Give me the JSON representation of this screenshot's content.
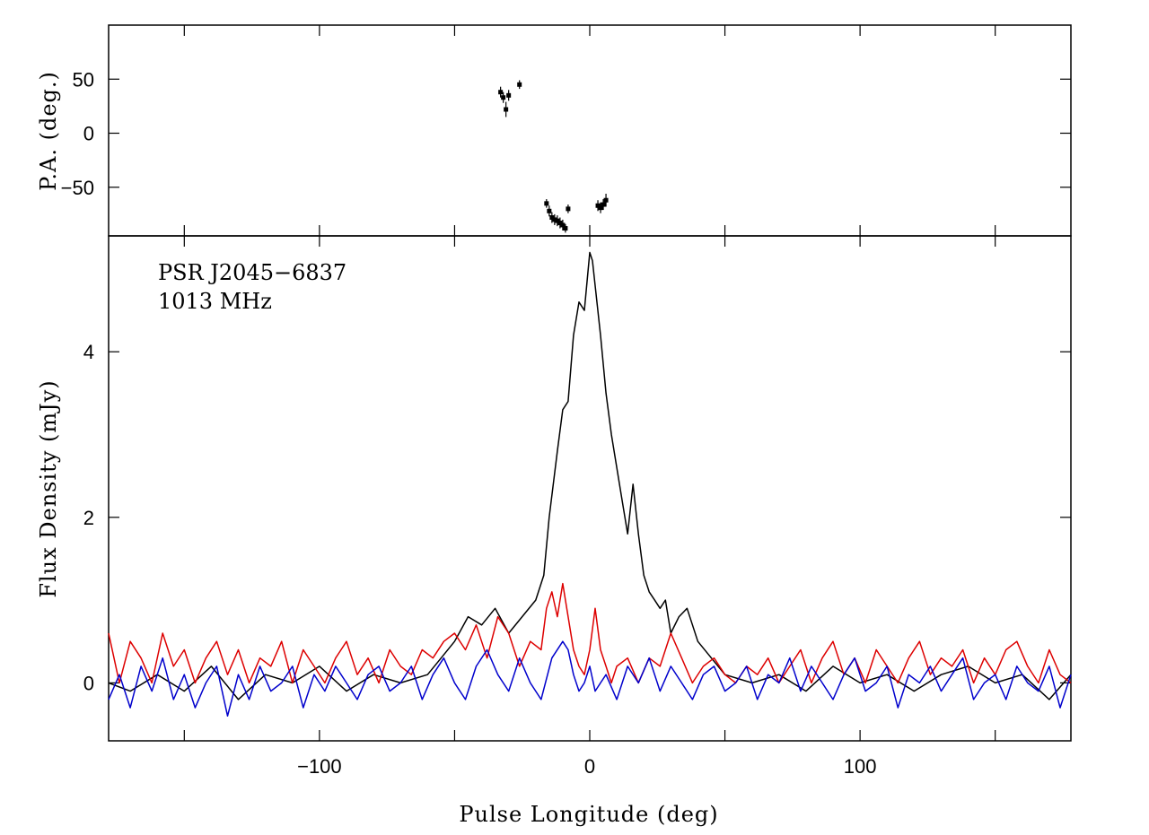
{
  "chart_data": [
    {
      "panel": "top",
      "type": "scatter",
      "ylabel": "P.A. (deg.)",
      "xlim": [
        -178,
        178
      ],
      "ylim": [
        -95,
        100
      ],
      "yticks": [
        -50,
        0,
        50
      ],
      "x": [
        -33,
        -32,
        -31,
        -30,
        -26,
        -16,
        -15,
        -14,
        -13,
        -12,
        -11,
        -10,
        -9,
        -8,
        3,
        4,
        5,
        6
      ],
      "y": [
        38,
        33,
        22,
        35,
        45,
        -65,
        -72,
        -78,
        -80,
        -81,
        -83,
        -85,
        -88,
        -70,
        -67,
        -69,
        -66,
        -62
      ],
      "err": [
        5,
        5,
        7,
        5,
        4,
        4,
        5,
        5,
        5,
        5,
        5,
        5,
        4,
        4,
        5,
        5,
        5,
        6
      ],
      "color": "#000000"
    },
    {
      "panel": "bottom",
      "type": "line",
      "xlabel": "Pulse Longitude (deg)",
      "ylabel": "Flux Density (mJy)",
      "xlim": [
        -178,
        178
      ],
      "ylim": [
        -0.7,
        5.4
      ],
      "xticks": [
        -100,
        0,
        100
      ],
      "yticks": [
        0,
        2,
        4
      ],
      "annotations": [
        "PSR J2045−6837",
        "1013 MHz"
      ],
      "series": [
        {
          "color": "#000000",
          "x": [
            -178,
            -170,
            -160,
            -150,
            -140,
            -130,
            -120,
            -110,
            -100,
            -90,
            -80,
            -70,
            -60,
            -55,
            -50,
            -45,
            -40,
            -35,
            -30,
            -25,
            -20,
            -17,
            -15,
            -12,
            -10,
            -8,
            -6,
            -4,
            -2,
            0,
            1,
            2,
            4,
            6,
            8,
            10,
            12,
            14,
            16,
            18,
            20,
            22,
            24,
            26,
            28,
            30,
            33,
            36,
            40,
            45,
            50,
            60,
            70,
            80,
            90,
            100,
            110,
            120,
            130,
            140,
            150,
            160,
            170,
            178
          ],
          "y": [
            0,
            -0.1,
            0.1,
            -0.1,
            0.2,
            -0.2,
            0.1,
            0,
            0.2,
            -0.1,
            0.1,
            0,
            0.1,
            0.3,
            0.5,
            0.8,
            0.7,
            0.9,
            0.6,
            0.8,
            1.0,
            1.3,
            2.0,
            2.8,
            3.3,
            3.4,
            4.2,
            4.6,
            4.5,
            5.2,
            5.1,
            4.8,
            4.2,
            3.5,
            3.0,
            2.6,
            2.2,
            1.8,
            2.4,
            1.8,
            1.3,
            1.1,
            1.0,
            0.9,
            1.0,
            0.6,
            0.8,
            0.9,
            0.5,
            0.3,
            0.1,
            0,
            0.1,
            -0.1,
            0.2,
            0,
            0.1,
            -0.1,
            0.1,
            0.2,
            0,
            0.1,
            -0.2,
            0.1
          ]
        },
        {
          "color": "#dd0000",
          "x": [
            -178,
            -174,
            -170,
            -166,
            -162,
            -158,
            -154,
            -150,
            -146,
            -142,
            -138,
            -134,
            -130,
            -126,
            -122,
            -118,
            -114,
            -110,
            -106,
            -102,
            -98,
            -94,
            -90,
            -86,
            -82,
            -78,
            -74,
            -70,
            -66,
            -62,
            -58,
            -54,
            -50,
            -46,
            -42,
            -38,
            -34,
            -30,
            -26,
            -22,
            -18,
            -16,
            -14,
            -12,
            -10,
            -8,
            -6,
            -4,
            -2,
            0,
            2,
            4,
            6,
            8,
            10,
            14,
            18,
            22,
            26,
            30,
            34,
            38,
            42,
            46,
            50,
            54,
            58,
            62,
            66,
            70,
            74,
            78,
            82,
            86,
            90,
            94,
            98,
            102,
            106,
            110,
            114,
            118,
            122,
            126,
            130,
            134,
            138,
            142,
            146,
            150,
            154,
            158,
            162,
            166,
            170,
            174,
            178
          ],
          "y": [
            0.6,
            0,
            0.5,
            0.3,
            0,
            0.6,
            0.2,
            0.4,
            0,
            0.3,
            0.5,
            0.1,
            0.4,
            0,
            0.3,
            0.2,
            0.5,
            0,
            0.4,
            0.2,
            0,
            0.3,
            0.5,
            0.1,
            0.3,
            0,
            0.4,
            0.2,
            0.1,
            0.4,
            0.3,
            0.5,
            0.6,
            0.4,
            0.7,
            0.3,
            0.8,
            0.6,
            0.2,
            0.5,
            0.4,
            0.9,
            1.1,
            0.8,
            1.2,
            0.8,
            0.4,
            0.2,
            0.1,
            0.4,
            0.9,
            0.4,
            0.2,
            0,
            0.2,
            0.3,
            0,
            0.3,
            0.2,
            0.6,
            0.3,
            0,
            0.2,
            0.3,
            0.1,
            0,
            0.2,
            0.1,
            0.3,
            0,
            0.2,
            0.4,
            0,
            0.3,
            0.5,
            0.1,
            0.3,
            0,
            0.4,
            0.2,
            0,
            0.3,
            0.5,
            0.1,
            0.3,
            0.2,
            0.4,
            0,
            0.3,
            0.1,
            0.4,
            0.5,
            0.2,
            0,
            0.4,
            0.1,
            0
          ]
        },
        {
          "color": "#0000cc",
          "x": [
            -178,
            -174,
            -170,
            -166,
            -162,
            -158,
            -154,
            -150,
            -146,
            -142,
            -138,
            -134,
            -130,
            -126,
            -122,
            -118,
            -114,
            -110,
            -106,
            -102,
            -98,
            -94,
            -90,
            -86,
            -82,
            -78,
            -74,
            -70,
            -66,
            -62,
            -58,
            -54,
            -50,
            -46,
            -42,
            -38,
            -34,
            -30,
            -26,
            -22,
            -18,
            -14,
            -10,
            -8,
            -6,
            -4,
            -2,
            0,
            2,
            4,
            6,
            10,
            14,
            18,
            22,
            26,
            30,
            34,
            38,
            42,
            46,
            50,
            54,
            58,
            62,
            66,
            70,
            74,
            78,
            82,
            86,
            90,
            94,
            98,
            102,
            106,
            110,
            114,
            118,
            122,
            126,
            130,
            134,
            138,
            142,
            146,
            150,
            154,
            158,
            162,
            166,
            170,
            174,
            178
          ],
          "y": [
            -0.2,
            0.1,
            -0.3,
            0.2,
            -0.1,
            0.3,
            -0.2,
            0.1,
            -0.3,
            0,
            0.2,
            -0.4,
            0.1,
            -0.2,
            0.2,
            -0.1,
            0,
            0.2,
            -0.3,
            0.1,
            -0.1,
            0.2,
            0,
            -0.2,
            0.1,
            0.2,
            -0.1,
            0,
            0.2,
            -0.2,
            0.1,
            0.3,
            0,
            -0.2,
            0.2,
            0.4,
            0.1,
            -0.1,
            0.3,
            0,
            -0.2,
            0.3,
            0.5,
            0.4,
            0.1,
            -0.1,
            0,
            0.2,
            -0.1,
            0,
            0.1,
            -0.2,
            0.2,
            0,
            0.3,
            -0.1,
            0.2,
            0,
            -0.2,
            0.1,
            0.2,
            -0.1,
            0,
            0.2,
            -0.2,
            0.1,
            0,
            0.3,
            -0.1,
            0.2,
            0,
            -0.2,
            0.1,
            0.3,
            -0.1,
            0,
            0.2,
            -0.3,
            0.1,
            0,
            0.2,
            -0.1,
            0.1,
            0.3,
            -0.2,
            0,
            0.1,
            -0.2,
            0.2,
            0,
            -0.1,
            0.2,
            -0.3,
            0.1
          ]
        }
      ]
    }
  ]
}
